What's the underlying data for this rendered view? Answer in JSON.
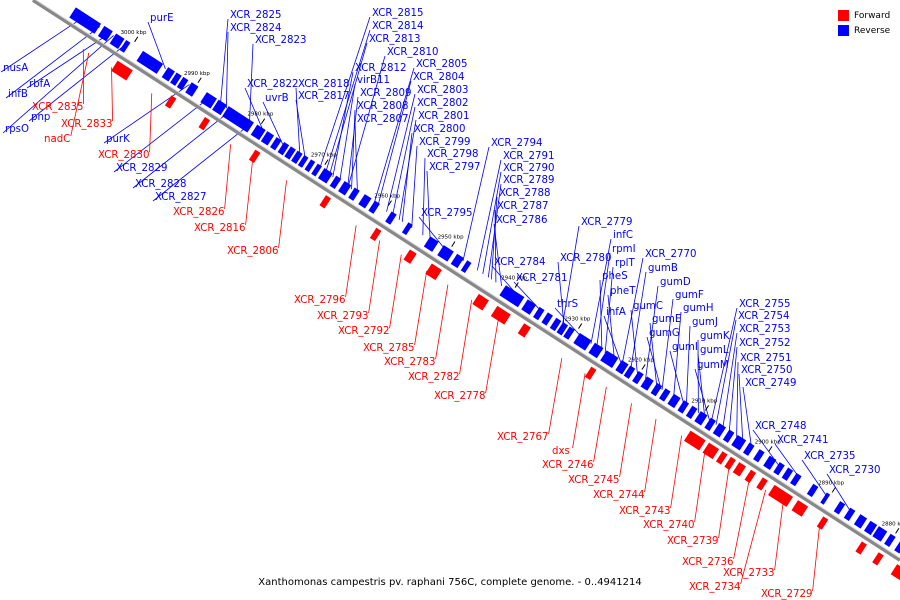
{
  "legend": {
    "forward": {
      "label": "Forward",
      "color": "#ff0000"
    },
    "reverse": {
      "label": "Reverse",
      "color": "#0000ff"
    }
  },
  "caption": "Xanthomonas campestris pv. raphani 756C, complete genome. - 0..4941214",
  "ticks": [
    "3000 kbp",
    "2990 kbp",
    "2980 kbp",
    "2970 kbp",
    "2960 kbp",
    "2950 kbp",
    "2940 kbp",
    "2930 kbp",
    "2920 kbp",
    "2910 kbp",
    "2900 kbp",
    "2890 kbp",
    "2880 kbp"
  ],
  "reverse_labels": [
    "purE",
    "XCR_2825",
    "XCR_2824",
    "XCR_2823",
    "XCR_2822",
    "uvrB",
    "XCR_2818",
    "XCR_2817",
    "XCR_2815",
    "XCR_2814",
    "XCR_2813",
    "XCR_2810",
    "XCR_2812",
    "virB11",
    "XCR_2809",
    "XCR_2808",
    "XCR_2807",
    "XCR_2805",
    "XCR_2804",
    "XCR_2803",
    "XCR_2802",
    "XCR_2801",
    "XCR_2800",
    "XCR_2799",
    "XCR_2798",
    "XCR_2797",
    "XCR_2794",
    "XCR_2791",
    "XCR_2790",
    "XCR_2789",
    "XCR_2788",
    "XCR_2787",
    "XCR_2786",
    "XCR_2795",
    "XCR_2784",
    "XCR_2781",
    "XCR_2780",
    "XCR_2779",
    "infC",
    "rpmI",
    "rplT",
    "pheS",
    "pheT",
    "thrS",
    "ihfA",
    "XCR_2770",
    "gumB",
    "gumD",
    "gumF",
    "gumC",
    "gumH",
    "gumE",
    "gumJ",
    "gumG",
    "gumK",
    "gumI",
    "gumL",
    "gumM",
    "XCR_2755",
    "XCR_2754",
    "XCR_2753",
    "XCR_2752",
    "XCR_2751",
    "XCR_2750",
    "XCR_2749",
    "XCR_2748",
    "XCR_2741",
    "XCR_2735",
    "XCR_2730",
    "nusA",
    "rbfA",
    "infB",
    "pnp",
    "rpsO",
    "purK",
    "XCR_2829",
    "XCR_2828",
    "XCR_2827"
  ],
  "forward_labels": [
    "XCR_2835",
    "XCR_2833",
    "nadC",
    "XCR_2830",
    "XCR_2826",
    "XCR_2816",
    "XCR_2806",
    "XCR_2796",
    "XCR_2793",
    "XCR_2792",
    "XCR_2785",
    "XCR_2783",
    "XCR_2782",
    "XCR_2778",
    "XCR_2767",
    "dxs",
    "XCR_2746",
    "XCR_2745",
    "XCR_2744",
    "XCR_2743",
    "XCR_2740",
    "XCR_2739",
    "XCR_2736",
    "XCR_2733",
    "XCR_2734",
    "XCR_2729"
  ]
}
